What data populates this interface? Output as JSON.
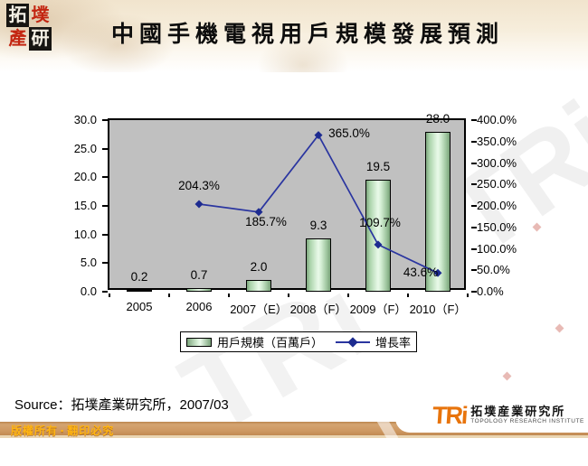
{
  "header": {
    "title": "中國手機電視用戶規模發展預測",
    "seal_chars": [
      "拓",
      "墣",
      "產",
      "研"
    ]
  },
  "chart_data": {
    "type": "combo",
    "categories": [
      "2005",
      "2006",
      "2007（E）",
      "2008（F）",
      "2009（F）",
      "2010（F）"
    ],
    "series": [
      {
        "name": "用戶規模（百萬戶）",
        "type": "bar",
        "values": [
          0.2,
          0.7,
          2.0,
          9.3,
          19.5,
          28.0
        ],
        "axis": "left"
      },
      {
        "name": "增長率",
        "type": "line",
        "values": [
          null,
          204.3,
          185.7,
          365.0,
          109.7,
          43.6
        ],
        "axis": "right",
        "unit": "%"
      }
    ],
    "bar_value_labels": [
      "0.2",
      "0.7",
      "2.0",
      "9.3",
      "19.5",
      "28.0"
    ],
    "line_value_labels": [
      "204.3%",
      "185.7%",
      "365.0%",
      "109.7%",
      "43.6%"
    ],
    "left_axis": {
      "min": 0,
      "max": 30,
      "step": 5,
      "tick_labels": [
        "30.0",
        "25.0",
        "20.0",
        "15.0",
        "10.0",
        "5.0",
        "0.0"
      ]
    },
    "right_axis": {
      "min": 0,
      "max": 400,
      "step": 50,
      "tick_labels": [
        "400.0%",
        "350.0%",
        "300.0%",
        "250.0%",
        "200.0%",
        "150.0%",
        "100.0%",
        "50.0%",
        "0.0%"
      ]
    },
    "grid": false,
    "legend_position": "bottom",
    "plot_bg": "#c0c0c0",
    "colors": {
      "bar_edge": "#7da67d",
      "bar_center": "#eafaea",
      "bar_border": "#000000",
      "line": "#2a35a0",
      "marker": "#1d2b90"
    }
  },
  "legend": {
    "items": [
      {
        "label": "用戶規模（百萬戶）",
        "swatch": "bar"
      },
      {
        "label": "增長率",
        "swatch": "line-diamond"
      }
    ]
  },
  "source": {
    "text": "Source：拓墣產業研究所，2007/03"
  },
  "watermark": {
    "text": "TRi"
  },
  "footer": {
    "copyright_left": "版權所有",
    "copyright_sep": "▪",
    "copyright_right": "翻印必究",
    "bar_color": "#cd9760",
    "text_color": "#ffb411",
    "tri_abbr": "TRi",
    "tri_cn": "拓墣産業研究所",
    "tri_en": "TOPOLOGY RESEARCH INSTITUTE",
    "tri_orange": "#e8740c"
  }
}
